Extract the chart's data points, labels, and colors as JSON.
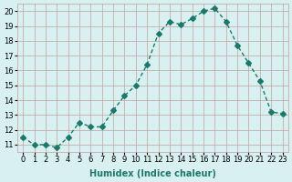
{
  "x": [
    0,
    1,
    2,
    3,
    4,
    5,
    6,
    7,
    8,
    9,
    10,
    11,
    12,
    13,
    14,
    15,
    16,
    17,
    18,
    19,
    20,
    21,
    22,
    23
  ],
  "y": [
    11.5,
    11.0,
    11.0,
    10.8,
    11.5,
    12.5,
    12.2,
    12.2,
    13.3,
    14.3,
    15.0,
    16.4,
    18.5,
    19.3,
    19.1,
    19.5,
    20.0,
    20.2,
    19.3,
    17.7,
    16.5,
    15.3,
    13.2,
    13.1
  ],
  "line_color": "#1a7a6a",
  "marker": "D",
  "marker_size": 3,
  "bg_color": "#d8f0f0",
  "grid_color": "#c0a0a0",
  "xlabel": "Humidex (Indice chaleur)",
  "ylabel": "",
  "title": "",
  "xlim": [
    -0.5,
    23.5
  ],
  "ylim": [
    10.5,
    20.5
  ],
  "yticks": [
    11,
    12,
    13,
    14,
    15,
    16,
    17,
    18,
    19,
    20
  ],
  "xticks": [
    0,
    1,
    2,
    3,
    4,
    5,
    6,
    7,
    8,
    9,
    10,
    11,
    12,
    13,
    14,
    15,
    16,
    17,
    18,
    19,
    20,
    21,
    22,
    23
  ],
  "label_fontsize": 7,
  "tick_fontsize": 6
}
